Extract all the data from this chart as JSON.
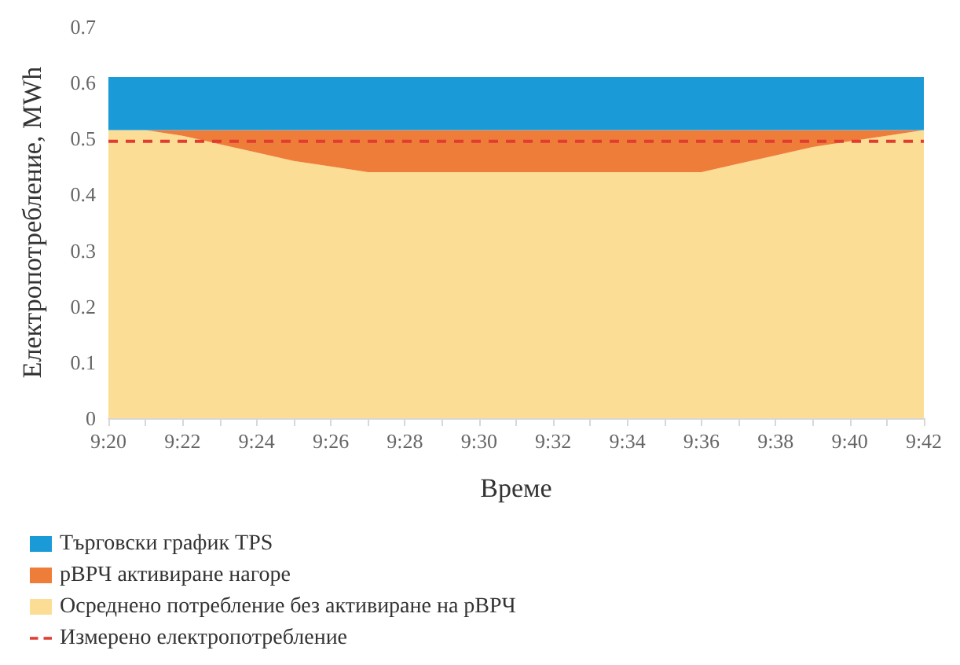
{
  "chart_data": {
    "type": "area",
    "stacked": true,
    "xlabel": "Време",
    "ylabel": "Електропотребление, MWh",
    "categories": [
      "9:20",
      null,
      "9:22",
      null,
      "9:24",
      null,
      "9:26",
      null,
      "9:28",
      null,
      "9:30",
      null,
      "9:32",
      null,
      "9:34",
      null,
      "9:36",
      null,
      "9:38",
      null,
      "9:40",
      null,
      "9:42"
    ],
    "series": [
      {
        "name": "Осреднено потребление без активиране на рВРЧ",
        "color": "#fbdd95",
        "values": [
          0.515,
          0.515,
          0.505,
          0.49,
          0.475,
          0.46,
          0.45,
          0.44,
          0.44,
          0.44,
          0.44,
          0.44,
          0.44,
          0.44,
          0.44,
          0.44,
          0.44,
          0.455,
          0.47,
          0.485,
          0.495,
          0.505,
          0.515
        ]
      },
      {
        "name": "рВРЧ активиране нагоре",
        "color": "#ef7d3a",
        "values": [
          0,
          0,
          0.01,
          0.025,
          0.04,
          0.055,
          0.065,
          0.075,
          0.075,
          0.075,
          0.075,
          0.075,
          0.075,
          0.075,
          0.075,
          0.075,
          0.075,
          0.06,
          0.045,
          0.03,
          0.02,
          0.01,
          0
        ]
      },
      {
        "name": "Търговски график TPS",
        "color": "#1a9ad6",
        "values": [
          0.095,
          0.095,
          0.095,
          0.095,
          0.095,
          0.095,
          0.095,
          0.095,
          0.095,
          0.095,
          0.095,
          0.095,
          0.095,
          0.095,
          0.095,
          0.095,
          0.095,
          0.095,
          0.095,
          0.095,
          0.095,
          0.095,
          0.095
        ]
      },
      {
        "name": "Измерено електропотребление",
        "type": "line",
        "line_style": "dashed",
        "color": "#e03c31",
        "values": [
          0.495,
          0.495,
          0.495,
          0.495,
          0.495,
          0.495,
          0.495,
          0.495,
          0.495,
          0.495,
          0.495,
          0.495,
          0.495,
          0.495,
          0.495,
          0.495,
          0.495,
          0.495,
          0.495,
          0.495,
          0.495,
          0.495,
          0.495
        ]
      }
    ],
    "ylim": [
      0,
      0.7
    ],
    "yticks": [
      0,
      0.1,
      0.2,
      0.3,
      0.4,
      0.5,
      0.6,
      0.7
    ],
    "legend": "bottom left"
  }
}
